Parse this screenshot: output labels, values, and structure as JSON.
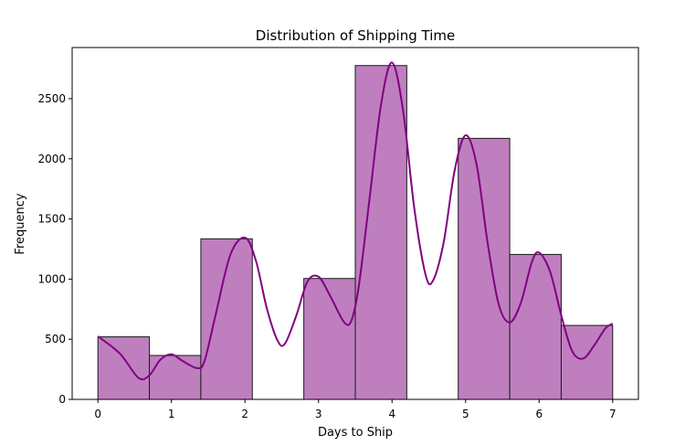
{
  "chart_data": {
    "type": "bar",
    "title": "Distribution of Shipping Time",
    "xlabel": "Days to Ship",
    "ylabel": "Frequency",
    "xlim": [
      -0.35,
      7.35
    ],
    "ylim": [
      0,
      2925
    ],
    "xticks": [
      0,
      1,
      2,
      3,
      4,
      5,
      6,
      7
    ],
    "yticks": [
      0,
      500,
      1000,
      1500,
      2000,
      2500
    ],
    "grid": false,
    "legend": "none",
    "bins": [
      {
        "x0": 0.0,
        "x1": 0.7,
        "value": 520
      },
      {
        "x0": 0.7,
        "x1": 1.4,
        "value": 365
      },
      {
        "x0": 1.4,
        "x1": 2.1,
        "value": 1335
      },
      {
        "x0": 2.1,
        "x1": 2.8,
        "value": 0
      },
      {
        "x0": 2.8,
        "x1": 3.5,
        "value": 1005
      },
      {
        "x0": 3.5,
        "x1": 4.2,
        "value": 2775
      },
      {
        "x0": 4.2,
        "x1": 4.9,
        "value": 0
      },
      {
        "x0": 4.9,
        "x1": 5.6,
        "value": 2170
      },
      {
        "x0": 5.6,
        "x1": 6.3,
        "value": 1205
      },
      {
        "x0": 6.3,
        "x1": 7.0,
        "value": 615
      }
    ],
    "kde": {
      "x": [
        0,
        0.3,
        0.55,
        0.7,
        0.85,
        1.0,
        1.15,
        1.35,
        1.45,
        1.6,
        1.8,
        2.0,
        2.15,
        2.3,
        2.45,
        2.55,
        2.7,
        2.85,
        3.0,
        3.15,
        3.35,
        3.45,
        3.55,
        3.7,
        3.85,
        4.0,
        4.15,
        4.3,
        4.45,
        4.55,
        4.7,
        4.85,
        5.0,
        5.15,
        5.3,
        5.45,
        5.6,
        5.75,
        5.9,
        6.0,
        6.15,
        6.3,
        6.45,
        6.6,
        6.75,
        6.9,
        7.0
      ],
      "y": [
        525,
        380,
        180,
        200,
        330,
        375,
        320,
        260,
        320,
        700,
        1200,
        1345,
        1150,
        750,
        480,
        470,
        700,
        980,
        1020,
        870,
        640,
        660,
        950,
        1700,
        2450,
        2800,
        2400,
        1600,
        1050,
        980,
        1300,
        1900,
        2195,
        1950,
        1300,
        790,
        640,
        800,
        1140,
        1220,
        1060,
        700,
        400,
        340,
        450,
        590,
        630
      ]
    },
    "colors": {
      "bar_fill": "#bf7fbf",
      "bar_edge": "#1a1a1a",
      "kde_line": "#800080"
    }
  }
}
